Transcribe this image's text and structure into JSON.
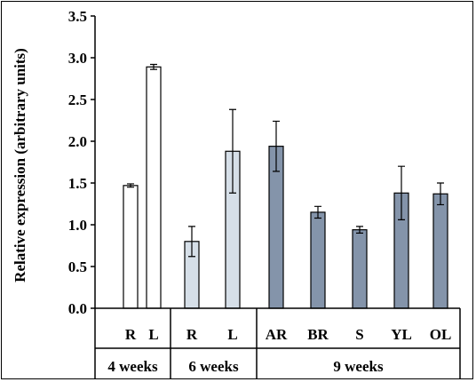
{
  "chart_data": {
    "type": "bar",
    "title": "",
    "xlabel": "",
    "ylabel": "Relative expression (arbitrary units)",
    "ylim": [
      0,
      3.5
    ],
    "yticks": [
      "0.0",
      "0.5",
      "1.0",
      "1.5",
      "2.0",
      "2.5",
      "3.0",
      "3.5"
    ],
    "grid": false,
    "legend": "none",
    "categories": [
      "R",
      "L",
      "R",
      "L",
      "AR",
      "BR",
      "S",
      "YL",
      "OL"
    ],
    "values": [
      1.47,
      2.89,
      0.8,
      1.88,
      1.94,
      1.15,
      0.94,
      1.38,
      1.37
    ],
    "errors": [
      0.02,
      0.03,
      0.18,
      0.5,
      0.3,
      0.07,
      0.04,
      0.32,
      0.13
    ],
    "groups": [
      {
        "label": "4 weeks",
        "categories": [
          "R",
          "L"
        ],
        "color": "#ffffff"
      },
      {
        "label": "6 weeks",
        "categories": [
          "R",
          "L"
        ],
        "color": "#d6dfe8"
      },
      {
        "label": "9 weeks",
        "categories": [
          "AR",
          "BR",
          "S",
          "YL",
          "OL"
        ],
        "color": "#8494aa"
      }
    ]
  }
}
